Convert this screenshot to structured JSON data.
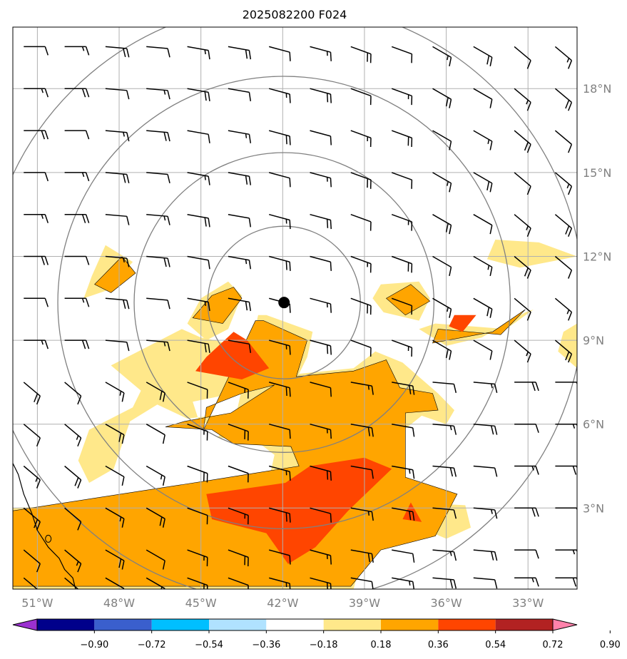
{
  "chart_data": {
    "type": "heatmap",
    "title": "2025082200 F024",
    "projection": "lat-lon map with wind barbs and range rings",
    "x_axis": {
      "range_deg": [
        -51.9,
        -31.2
      ],
      "tick_values": [
        -51,
        -48,
        -45,
        -42,
        -39,
        -36,
        -33
      ],
      "tick_labels": [
        "51°W",
        "48°W",
        "45°W",
        "42°W",
        "39°W",
        "36°W",
        "33°W"
      ]
    },
    "y_axis": {
      "range_deg": [
        0.1,
        20.2
      ],
      "tick_values": [
        3,
        6,
        9,
        12,
        15,
        18
      ],
      "tick_labels": [
        "3°N",
        "6°N",
        "9°N",
        "12°N",
        "15°N",
        "18°N"
      ],
      "position": "right"
    },
    "grid": true,
    "center_marker": {
      "lon": -41.95,
      "lat": 10.35
    },
    "range_rings_deg": [
      2.8,
      5.5,
      8.3,
      11.0
    ],
    "colorbar": {
      "orientation": "horizontal",
      "extend": "both",
      "tick_values": [
        "−0.90",
        "−0.72",
        "−0.54",
        "−0.36",
        "−0.18",
        "0.18",
        "0.36",
        "0.54",
        "0.72",
        "0.90"
      ],
      "colors": [
        "#9b30d0",
        "#00008b",
        "#3a5fcd",
        "#00bfff",
        "#b0e2ff",
        "#ffffff",
        "#ffe88a",
        "#ffa500",
        "#ff4500",
        "#b22222",
        "#ff82ab"
      ]
    },
    "contours": [
      {
        "level": 0.18,
        "color": "#ffe88a",
        "lon": [
          -42.6,
          -40.9,
          -41.1,
          -41.4,
          -39.4,
          -38.6,
          -37.6,
          -36.3,
          -35.7,
          -36.0,
          -36.9,
          -37.8,
          -37.6,
          -37.3,
          -35.3,
          -35.1,
          -36.0,
          -36.7,
          -38.9,
          -39.1,
          -39.4,
          -41.0,
          -44.3,
          -46.4,
          -47.4,
          -50.4,
          -51.9,
          -51.9,
          -44.8,
          -42.6,
          -42.3,
          -43.1,
          -44.4,
          -43.7,
          -45.5,
          -46.6,
          -47.6,
          -48.2,
          -49.1,
          -49.5,
          -49.1,
          -47.5,
          -47.2,
          -48.3,
          -45.7,
          -45.0,
          -44.5,
          -42.8,
          -42.1,
          -43.8,
          -45.3,
          -45.1,
          -43.9,
          -42.9
        ],
        "lat": [
          9.9,
          9.3,
          8.4,
          7.8,
          8.0,
          8.6,
          8.2,
          7.1,
          6.5,
          6.0,
          6.3,
          5.6,
          4.3,
          3.2,
          3.1,
          2.3,
          1.9,
          2.2,
          1.6,
          1.2,
          0.1,
          0.1,
          0.1,
          0.1,
          0.1,
          0.1,
          0.1,
          3.0,
          3.3,
          3.6,
          4.9,
          5.5,
          5.5,
          6.4,
          6.2,
          6.7,
          6.1,
          4.4,
          3.9,
          4.7,
          5.8,
          6.6,
          7.2,
          8.1,
          9.4,
          9.1,
          9.0,
          8.6,
          7.6,
          7.1,
          6.8,
          6.2,
          5.5,
          9.9
        ]
      },
      {
        "level": 0.18,
        "color": "#ffe88a",
        "lon": [
          -44.0,
          -43.5,
          -44.0,
          -44.8,
          -45.5,
          -45.0
        ],
        "lat": [
          11.1,
          10.6,
          9.4,
          9.0,
          9.6,
          10.5
        ]
      },
      {
        "level": 0.18,
        "color": "#ffe88a",
        "lon": [
          -48.5,
          -47.5,
          -48.4,
          -49.3,
          -49.0
        ],
        "lat": [
          12.4,
          11.8,
          10.8,
          10.5,
          11.3
        ]
      },
      {
        "level": 0.18,
        "color": "#ffe88a",
        "lon": [
          -38.4,
          -37.0,
          -36.6,
          -37.0,
          -38.3,
          -38.7
        ],
        "lat": [
          11.0,
          11.1,
          10.5,
          9.7,
          10.0,
          10.5
        ]
      },
      {
        "level": 0.18,
        "color": "#ffe88a",
        "lon": [
          -36.4,
          -33.8,
          -32.8,
          -33.1,
          -34.7,
          -36.0,
          -37.0
        ],
        "lat": [
          9.6,
          9.4,
          10.1,
          10.0,
          9.1,
          8.8,
          9.4
        ]
      },
      {
        "level": 0.18,
        "color": "#ffe88a",
        "lon": [
          -34.2,
          -32.6,
          -31.2,
          -33.3,
          -34.5
        ],
        "lat": [
          12.6,
          12.5,
          12.0,
          11.6,
          11.9
        ]
      },
      {
        "level": 0.18,
        "color": "#ffe88a",
        "lon": [
          -31.7,
          -31.2,
          -31.2,
          -31.9
        ],
        "lat": [
          9.3,
          9.6,
          8.0,
          8.6
        ]
      },
      {
        "level": 0.36,
        "color": "#ffa500",
        "lon": [
          -42.7,
          -41.1,
          -41.5,
          -39.4,
          -38.2,
          -37.7,
          -36.5,
          -36.3,
          -37.5,
          -37.5,
          -35.6,
          -36.4,
          -38.4,
          -39.5,
          -41.0,
          -44.0,
          -47.7,
          -51.0,
          -51.9,
          -51.9,
          -44.6,
          -41.4,
          -41.7,
          -43.8,
          -44.6,
          -46.3,
          -45.6,
          -43.9,
          -42.3,
          -43.5,
          -44.8,
          -44.9,
          -43.0
        ],
        "lat": [
          9.7,
          9.0,
          7.7,
          7.9,
          8.3,
          7.3,
          7.1,
          6.5,
          6.4,
          4.1,
          3.5,
          2.0,
          1.5,
          0.2,
          0.2,
          0.2,
          0.2,
          0.2,
          0.2,
          2.9,
          4.0,
          4.5,
          5.2,
          5.3,
          5.8,
          5.9,
          6.1,
          6.4,
          7.4,
          7.1,
          6.6,
          5.8,
          9.7
        ]
      },
      {
        "level": 0.36,
        "color": "#ffa500",
        "lon": [
          -43.8,
          -43.5,
          -44.2,
          -45.3,
          -44.6
        ],
        "lat": [
          10.9,
          10.5,
          9.6,
          9.8,
          10.6
        ]
      },
      {
        "level": 0.36,
        "color": "#ffa500",
        "lon": [
          -36.3,
          -34.0,
          -33.1,
          -34.3,
          -36.5
        ],
        "lat": [
          9.4,
          9.2,
          10.1,
          9.3,
          8.9
        ]
      },
      {
        "level": 0.36,
        "color": "#ffa500",
        "lon": [
          -47.9,
          -47.4,
          -48.3,
          -48.9
        ],
        "lat": [
          12.0,
          11.4,
          10.7,
          11.0
        ]
      },
      {
        "level": 0.36,
        "color": "#ffa500",
        "lon": [
          -37.3,
          -36.6,
          -37.5,
          -38.2
        ],
        "lat": [
          11.0,
          10.4,
          9.9,
          10.5
        ]
      },
      {
        "level": 0.54,
        "color": "#ff4500",
        "lon": [
          -43.8,
          -43.3,
          -42.5,
          -43.5,
          -45.2,
          -44.8
        ],
        "lat": [
          9.3,
          9.0,
          8.0,
          7.6,
          7.9,
          8.4
        ]
      },
      {
        "level": 0.54,
        "color": "#ff4500",
        "lon": [
          -41.0,
          -39.0,
          -38.0,
          -39.6,
          -40.8,
          -41.8,
          -42.6,
          -44.6,
          -44.8,
          -41.9
        ],
        "lat": [
          4.5,
          4.8,
          4.4,
          2.9,
          1.6,
          1.0,
          2.1,
          2.6,
          3.5,
          3.9
        ]
      },
      {
        "level": 0.54,
        "color": "#ff4500",
        "lon": [
          -35.7,
          -34.9,
          -35.4,
          -35.9
        ],
        "lat": [
          9.9,
          9.9,
          9.3,
          9.5
        ]
      },
      {
        "level": 0.54,
        "color": "#ff4500",
        "lon": [
          -37.3,
          -36.9,
          -37.6
        ],
        "lat": [
          3.2,
          2.5,
          2.6
        ]
      }
    ],
    "wind_barbs": {
      "lon_values": [
        -51.5,
        -50.0,
        -48.5,
        -47.0,
        -45.5,
        -44.0,
        -42.5,
        -41.0,
        -39.5,
        -38.0,
        -36.5,
        -35.0,
        -33.5,
        -32.0
      ],
      "lat_values": [
        19.5,
        18.0,
        16.5,
        15.0,
        13.5,
        12.0,
        10.5,
        9.0,
        7.5,
        6.0,
        4.5,
        3.0,
        1.5,
        0.5
      ],
      "shaft_direction_deg": [
        270,
        275,
        280,
        285,
        290,
        300,
        310,
        320
      ],
      "speeds_kt": [
        10,
        15,
        20
      ]
    }
  },
  "icons": {
    "center_marker": "filled-circle-icon",
    "barbs": "wind-barb-icon"
  }
}
